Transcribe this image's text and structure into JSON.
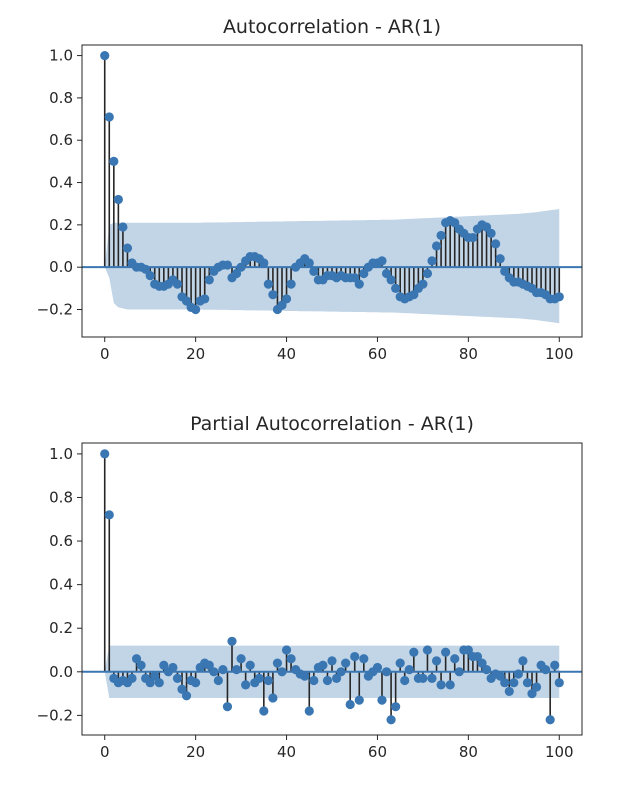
{
  "chart_data": [
    {
      "type": "stem",
      "title": "Autocorrelation - AR(1)",
      "xlabel": "",
      "ylabel": "",
      "xlim": [
        -5,
        105
      ],
      "ylim": [
        -0.33,
        1.05
      ],
      "x_ticks": [
        0,
        20,
        40,
        60,
        80,
        100
      ],
      "y_ticks": [
        -0.2,
        0.0,
        0.2,
        0.4,
        0.6,
        0.8,
        1.0
      ],
      "tick_labels_x": [
        "0",
        "20",
        "40",
        "60",
        "80",
        "100"
      ],
      "tick_labels_y": [
        "−0.2",
        "0.0",
        "0.2",
        "0.4",
        "0.6",
        "0.8",
        "1.0"
      ],
      "x": [
        0,
        1,
        2,
        3,
        4,
        5,
        6,
        7,
        8,
        9,
        10,
        11,
        12,
        13,
        14,
        15,
        16,
        17,
        18,
        19,
        20,
        21,
        22,
        23,
        24,
        25,
        26,
        27,
        28,
        29,
        30,
        31,
        32,
        33,
        34,
        35,
        36,
        37,
        38,
        39,
        40,
        41,
        42,
        43,
        44,
        45,
        46,
        47,
        48,
        49,
        50,
        51,
        52,
        53,
        54,
        55,
        56,
        57,
        58,
        59,
        60,
        61,
        62,
        63,
        64,
        65,
        66,
        67,
        68,
        69,
        70,
        71,
        72,
        73,
        74,
        75,
        76,
        77,
        78,
        79,
        80,
        81,
        82,
        83,
        84,
        85,
        86,
        87,
        88,
        89,
        90,
        91,
        92,
        93,
        94,
        95,
        96,
        97,
        98,
        99,
        100
      ],
      "values": [
        1.0,
        0.71,
        0.5,
        0.32,
        0.19,
        0.09,
        0.02,
        0.0,
        0.0,
        -0.01,
        -0.04,
        -0.08,
        -0.09,
        -0.09,
        -0.08,
        -0.06,
        -0.08,
        -0.14,
        -0.16,
        -0.19,
        -0.2,
        -0.16,
        -0.15,
        -0.06,
        -0.02,
        0.0,
        0.01,
        0.01,
        -0.05,
        -0.03,
        0.0,
        0.03,
        0.05,
        0.05,
        0.04,
        0.02,
        -0.08,
        -0.13,
        -0.2,
        -0.18,
        -0.15,
        -0.08,
        0.0,
        0.02,
        0.04,
        0.02,
        -0.02,
        -0.06,
        -0.06,
        -0.04,
        -0.04,
        -0.05,
        -0.04,
        -0.05,
        -0.05,
        -0.05,
        -0.08,
        -0.03,
        0.0,
        0.02,
        0.02,
        0.03,
        -0.03,
        -0.06,
        -0.1,
        -0.14,
        -0.15,
        -0.14,
        -0.13,
        -0.1,
        -0.08,
        -0.03,
        0.03,
        0.1,
        0.15,
        0.21,
        0.22,
        0.21,
        0.18,
        0.16,
        0.14,
        0.14,
        0.18,
        0.2,
        0.19,
        0.16,
        0.11,
        0.04,
        -0.02,
        -0.05,
        -0.07,
        -0.07,
        -0.08,
        -0.09,
        -0.1,
        -0.12,
        -0.12,
        -0.13,
        -0.15,
        -0.15,
        -0.14
      ],
      "conf_upper": [
        0.0,
        0.2,
        0.21,
        0.21,
        0.21,
        0.21,
        0.21,
        0.21,
        0.21,
        0.21,
        0.21,
        0.21,
        0.21,
        0.21,
        0.21,
        0.21,
        0.21,
        0.21,
        0.21,
        0.21,
        0.21,
        0.21,
        0.211,
        0.211,
        0.211,
        0.212,
        0.212,
        0.212,
        0.213,
        0.213,
        0.213,
        0.214,
        0.214,
        0.214,
        0.215,
        0.215,
        0.215,
        0.216,
        0.216,
        0.216,
        0.217,
        0.217,
        0.217,
        0.218,
        0.218,
        0.218,
        0.219,
        0.219,
        0.219,
        0.22,
        0.22,
        0.22,
        0.221,
        0.221,
        0.221,
        0.222,
        0.222,
        0.222,
        0.223,
        0.223,
        0.223,
        0.224,
        0.224,
        0.224,
        0.225,
        0.226,
        0.227,
        0.228,
        0.229,
        0.23,
        0.231,
        0.232,
        0.233,
        0.234,
        0.235,
        0.236,
        0.237,
        0.238,
        0.239,
        0.24,
        0.241,
        0.242,
        0.243,
        0.244,
        0.245,
        0.246,
        0.247,
        0.248,
        0.249,
        0.25,
        0.251,
        0.252,
        0.254,
        0.256,
        0.258,
        0.26,
        0.263,
        0.266,
        0.269,
        0.272,
        0.275
      ],
      "conf_lower": [
        0.0,
        -0.05,
        -0.17,
        -0.19,
        -0.195,
        -0.2,
        -0.2,
        -0.2,
        -0.2,
        -0.2,
        -0.2,
        -0.2,
        -0.2,
        -0.2,
        -0.2,
        -0.2,
        -0.2,
        -0.2,
        -0.2,
        -0.2,
        -0.2,
        -0.2,
        -0.201,
        -0.201,
        -0.201,
        -0.202,
        -0.202,
        -0.202,
        -0.203,
        -0.203,
        -0.203,
        -0.204,
        -0.204,
        -0.204,
        -0.205,
        -0.205,
        -0.205,
        -0.206,
        -0.206,
        -0.206,
        -0.207,
        -0.207,
        -0.207,
        -0.208,
        -0.208,
        -0.208,
        -0.209,
        -0.209,
        -0.209,
        -0.21,
        -0.21,
        -0.21,
        -0.211,
        -0.211,
        -0.211,
        -0.212,
        -0.212,
        -0.212,
        -0.213,
        -0.213,
        -0.213,
        -0.214,
        -0.214,
        -0.214,
        -0.215,
        -0.216,
        -0.217,
        -0.218,
        -0.219,
        -0.22,
        -0.221,
        -0.222,
        -0.223,
        -0.224,
        -0.225,
        -0.226,
        -0.227,
        -0.228,
        -0.229,
        -0.23,
        -0.231,
        -0.232,
        -0.233,
        -0.234,
        -0.235,
        -0.236,
        -0.237,
        -0.238,
        -0.239,
        -0.24,
        -0.241,
        -0.242,
        -0.244,
        -0.246,
        -0.248,
        -0.25,
        -0.253,
        -0.256,
        -0.259,
        -0.262,
        -0.265
      ],
      "colors": {
        "marker": "#3a77b2",
        "stem": "#262626",
        "band": "#c2d5e7",
        "zero_line": "#3a77b2",
        "frame": "#262626"
      },
      "grid": false,
      "legend": "none"
    },
    {
      "type": "stem",
      "title": "Partial Autocorrelation - AR(1)",
      "xlabel": "",
      "ylabel": "",
      "xlim": [
        -5,
        105
      ],
      "ylim": [
        -0.29,
        1.05
      ],
      "x_ticks": [
        0,
        20,
        40,
        60,
        80,
        100
      ],
      "y_ticks": [
        -0.2,
        0.0,
        0.2,
        0.4,
        0.6,
        0.8,
        1.0
      ],
      "tick_labels_x": [
        "0",
        "20",
        "40",
        "60",
        "80",
        "100"
      ],
      "tick_labels_y": [
        "−0.2",
        "0.0",
        "0.2",
        "0.4",
        "0.6",
        "0.8",
        "1.0"
      ],
      "x": [
        0,
        1,
        2,
        3,
        4,
        5,
        6,
        7,
        8,
        9,
        10,
        11,
        12,
        13,
        14,
        15,
        16,
        17,
        18,
        19,
        20,
        21,
        22,
        23,
        24,
        25,
        26,
        27,
        28,
        29,
        30,
        31,
        32,
        33,
        34,
        35,
        36,
        37,
        38,
        39,
        40,
        41,
        42,
        43,
        44,
        45,
        46,
        47,
        48,
        49,
        50,
        51,
        52,
        53,
        54,
        55,
        56,
        57,
        58,
        59,
        60,
        61,
        62,
        63,
        64,
        65,
        66,
        67,
        68,
        69,
        70,
        71,
        72,
        73,
        74,
        75,
        76,
        77,
        78,
        79,
        80,
        81,
        82,
        83,
        84,
        85,
        86,
        87,
        88,
        89,
        90,
        91,
        92,
        93,
        94,
        95,
        96,
        97,
        98,
        99,
        100
      ],
      "values": [
        1.0,
        0.72,
        -0.03,
        -0.05,
        -0.04,
        -0.05,
        -0.03,
        0.06,
        0.03,
        -0.03,
        -0.05,
        -0.02,
        -0.05,
        0.03,
        0.0,
        0.02,
        -0.03,
        -0.08,
        -0.11,
        -0.04,
        -0.05,
        0.02,
        0.04,
        0.03,
        0.0,
        -0.04,
        0.01,
        -0.16,
        0.14,
        0.01,
        0.06,
        -0.06,
        0.03,
        -0.05,
        -0.03,
        -0.18,
        -0.04,
        -0.12,
        0.04,
        0.0,
        0.1,
        0.06,
        0.01,
        -0.01,
        -0.02,
        -0.18,
        -0.04,
        0.02,
        0.03,
        -0.04,
        0.05,
        -0.03,
        0.0,
        0.04,
        -0.15,
        0.07,
        -0.13,
        0.06,
        -0.02,
        0.0,
        0.02,
        -0.13,
        0.0,
        -0.22,
        -0.16,
        0.04,
        -0.04,
        0.01,
        0.09,
        -0.03,
        -0.03,
        0.1,
        -0.03,
        0.05,
        -0.06,
        0.09,
        -0.06,
        0.06,
        0.0,
        0.1,
        0.1,
        0.07,
        0.07,
        0.04,
        0.01,
        -0.03,
        -0.01,
        -0.02,
        -0.05,
        -0.09,
        -0.05,
        -0.01,
        0.05,
        -0.05,
        -0.1,
        -0.07,
        0.03,
        0.01,
        -0.22,
        0.03,
        -0.05
      ],
      "conf_upper": [
        0.0,
        0.12,
        0.12,
        0.12,
        0.12,
        0.12,
        0.12,
        0.12,
        0.12,
        0.12,
        0.12,
        0.12,
        0.12,
        0.12,
        0.12,
        0.12,
        0.12,
        0.12,
        0.12,
        0.12,
        0.12,
        0.12,
        0.12,
        0.12,
        0.12,
        0.12,
        0.12,
        0.12,
        0.12,
        0.12,
        0.12,
        0.12,
        0.12,
        0.12,
        0.12,
        0.12,
        0.12,
        0.12,
        0.12,
        0.12,
        0.12,
        0.12,
        0.12,
        0.12,
        0.12,
        0.12,
        0.12,
        0.12,
        0.12,
        0.12,
        0.12,
        0.12,
        0.12,
        0.12,
        0.12,
        0.12,
        0.12,
        0.12,
        0.12,
        0.12,
        0.12,
        0.12,
        0.12,
        0.12,
        0.12,
        0.12,
        0.12,
        0.12,
        0.12,
        0.12,
        0.12,
        0.12,
        0.12,
        0.12,
        0.12,
        0.12,
        0.12,
        0.12,
        0.12,
        0.12,
        0.12,
        0.12,
        0.12,
        0.12,
        0.12,
        0.12,
        0.12,
        0.12,
        0.12,
        0.12,
        0.12,
        0.12,
        0.12,
        0.12,
        0.12,
        0.12,
        0.12,
        0.12,
        0.12,
        0.12,
        0.12
      ],
      "conf_lower": [
        0.0,
        -0.12,
        -0.12,
        -0.12,
        -0.12,
        -0.12,
        -0.12,
        -0.12,
        -0.12,
        -0.12,
        -0.12,
        -0.12,
        -0.12,
        -0.12,
        -0.12,
        -0.12,
        -0.12,
        -0.12,
        -0.12,
        -0.12,
        -0.12,
        -0.12,
        -0.12,
        -0.12,
        -0.12,
        -0.12,
        -0.12,
        -0.12,
        -0.12,
        -0.12,
        -0.12,
        -0.12,
        -0.12,
        -0.12,
        -0.12,
        -0.12,
        -0.12,
        -0.12,
        -0.12,
        -0.12,
        -0.12,
        -0.12,
        -0.12,
        -0.12,
        -0.12,
        -0.12,
        -0.12,
        -0.12,
        -0.12,
        -0.12,
        -0.12,
        -0.12,
        -0.12,
        -0.12,
        -0.12,
        -0.12,
        -0.12,
        -0.12,
        -0.12,
        -0.12,
        -0.12,
        -0.12,
        -0.12,
        -0.12,
        -0.12,
        -0.12,
        -0.12,
        -0.12,
        -0.12,
        -0.12,
        -0.12,
        -0.12,
        -0.12,
        -0.12,
        -0.12,
        -0.12,
        -0.12,
        -0.12,
        -0.12,
        -0.12,
        -0.12,
        -0.12,
        -0.12,
        -0.12,
        -0.12,
        -0.12,
        -0.12,
        -0.12,
        -0.12,
        -0.12,
        -0.12,
        -0.12,
        -0.12,
        -0.12,
        -0.12,
        -0.12,
        -0.12,
        -0.12,
        -0.12,
        -0.12,
        -0.12
      ],
      "colors": {
        "marker": "#3a77b2",
        "stem": "#262626",
        "band": "#c2d5e7",
        "zero_line": "#3a77b2",
        "frame": "#262626"
      },
      "grid": false,
      "legend": "none"
    }
  ]
}
